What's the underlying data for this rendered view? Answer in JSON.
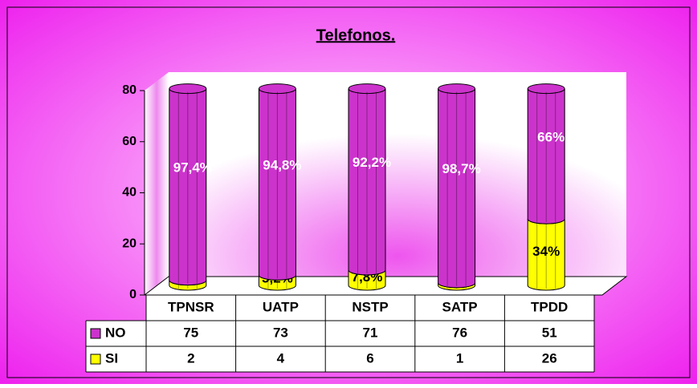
{
  "chart_data": {
    "type": "bar",
    "stacked": true,
    "title": "Telefonos.",
    "categories": [
      "TPNSR",
      "UATP",
      "NSTP",
      "SATP",
      "TPDD"
    ],
    "series": [
      {
        "name": "SI",
        "color": "#ffff00",
        "values": [
          2,
          4,
          6,
          1,
          26
        ],
        "value_labels": [
          null,
          "5,2%",
          "7,8%",
          null,
          "34%"
        ]
      },
      {
        "name": "NO",
        "color": "#cc33cc",
        "values": [
          75,
          73,
          71,
          76,
          51
        ],
        "value_labels": [
          "97,4%",
          "94,8%",
          "92,2%",
          "98,7%",
          "66%"
        ]
      }
    ],
    "ylim": [
      0,
      80
    ],
    "yticks": [
      0,
      20,
      40,
      60,
      80
    ]
  }
}
